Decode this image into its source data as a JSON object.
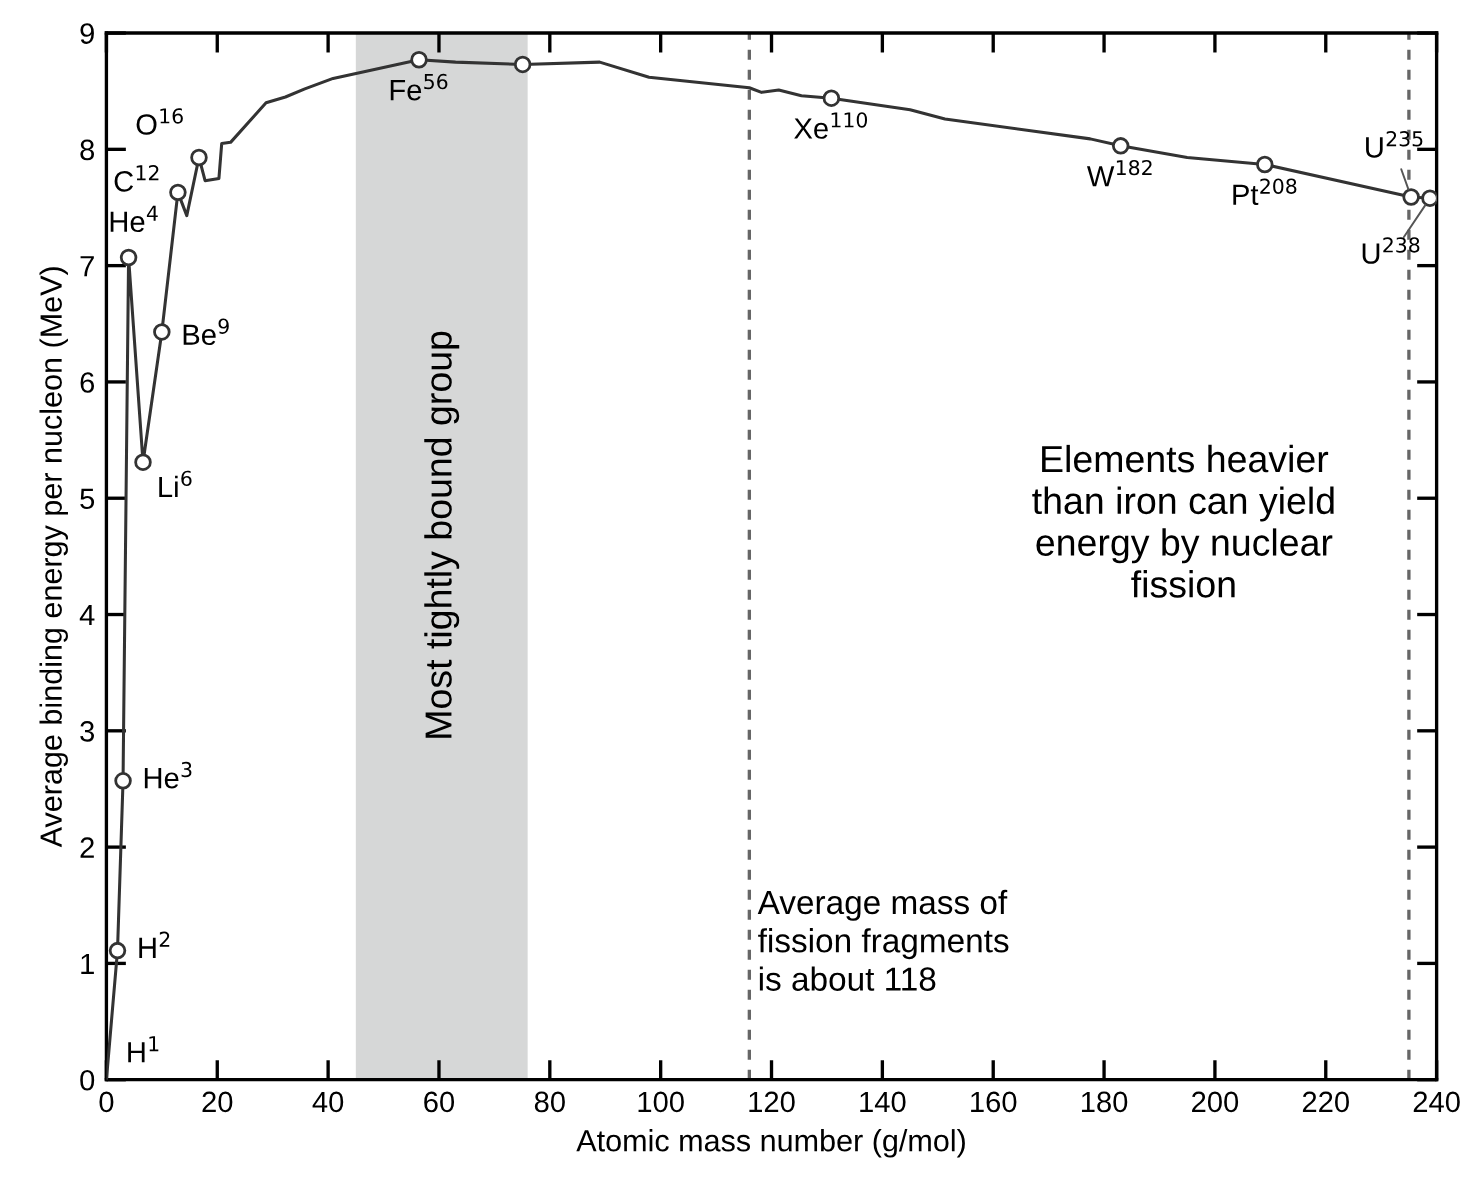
{
  "chart_data": {
    "type": "line",
    "xlabel": "Atomic mass number (g/mol)",
    "ylabel": "Average binding energy per nucleon (MeV)",
    "series": [
      {
        "color": "#333333",
        "marker": "none",
        "x": [
          0,
          2,
          3,
          4,
          6.6,
          10,
          12.9,
          14.5,
          16.7,
          17.8,
          20.3,
          20.8,
          22.4,
          28.8,
          32.3,
          35.8,
          40.9,
          56.4,
          63,
          75.1,
          89,
          97.9,
          116,
          118.2,
          121.3,
          125.4,
          130.8,
          145,
          151.3,
          177.5,
          183,
          195,
          209,
          235.4,
          238.8
        ],
        "values": [
          0,
          1.11,
          2.57,
          7.07,
          5.31,
          6.43,
          7.63,
          7.43,
          7.93,
          7.73,
          7.75,
          8.05,
          8.06,
          8.4,
          8.45,
          8.52,
          8.61,
          8.77,
          8.75,
          8.73,
          8.75,
          8.62,
          8.53,
          8.49,
          8.51,
          8.46,
          8.44,
          8.34,
          8.26,
          8.09,
          8.03,
          7.93,
          7.87,
          7.59,
          7.58
        ]
      },
      {
        "type": "scatter",
        "color": "#333333",
        "marker": "circle",
        "x": [
          2,
          3,
          4,
          6.6,
          10,
          12.9,
          16.7,
          56.4,
          75.1,
          130.8,
          183,
          209,
          235.4,
          238.8
        ],
        "values": [
          1.11,
          2.57,
          7.07,
          5.31,
          6.43,
          7.63,
          7.93,
          8.77,
          8.73,
          8.44,
          8.03,
          7.87,
          7.59,
          7.58
        ]
      }
    ],
    "xlim": [
      0,
      240
    ],
    "xticks": [
      0,
      20,
      40,
      60,
      80,
      100,
      120,
      140,
      160,
      180,
      200,
      220,
      240
    ],
    "ylim": [
      0,
      9
    ],
    "yticks": [
      0,
      1,
      2,
      3,
      4,
      5,
      6,
      7,
      8,
      9
    ],
    "grid": false,
    "legend": false,
    "bands": [
      {
        "axis": "x",
        "from": 45,
        "to": 76,
        "label": "Most tightly bound group",
        "color": "#d6d7d7"
      }
    ],
    "ref_lines": [
      {
        "axis": "x",
        "value": 116,
        "label": "Average mass of\nfission fragments\nis about 118",
        "color": "#666666",
        "line_style": "dashed"
      },
      {
        "axis": "x",
        "value": 235,
        "label": null,
        "color": "#666666",
        "line_style": "dashed"
      }
    ],
    "annotations": [
      {
        "text": "H$^{1}$",
        "x": 0,
        "y": 0
      },
      {
        "text": "H$^{2}$",
        "x": 2,
        "y": 1.11
      },
      {
        "text": "He$^{3}$",
        "x": 3,
        "y": 2.57
      },
      {
        "text": "He$^{4}$",
        "x": 4,
        "y": 7.07
      },
      {
        "text": "Li$^{6}$",
        "x": 6.6,
        "y": 5.31
      },
      {
        "text": "Be$^{9}$",
        "x": 10,
        "y": 6.43
      },
      {
        "text": "C$^{12}$",
        "x": 12.9,
        "y": 7.63
      },
      {
        "text": "O$^{16}$",
        "x": 16.7,
        "y": 7.93
      },
      {
        "text": "Fe$^{56}$",
        "x": 56.4,
        "y": 8.77
      },
      {
        "text": "Xe$^{110}$",
        "x": 130.8,
        "y": 8.44
      },
      {
        "text": "W$^{182}$",
        "x": 183,
        "y": 8.03
      },
      {
        "text": "Pt$^{208}$",
        "x": 209,
        "y": 7.87
      },
      {
        "text": "U$^{235}$",
        "x": 235.4,
        "y": 7.59
      },
      {
        "text": "U$^{238}$",
        "x": 238.8,
        "y": 7.58
      },
      "Elements heavier\nthan iron can yield\nenergy by nuclear\nfission"
    ]
  }
}
